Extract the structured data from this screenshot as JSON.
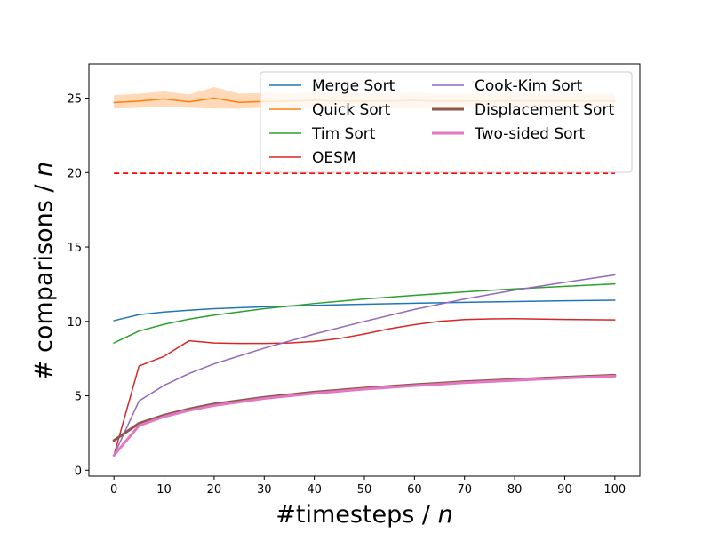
{
  "chart_data": {
    "type": "line",
    "xlabel": "#timesteps / ",
    "xlabel_var": "n",
    "ylabel": "# comparisons / ",
    "ylabel_var": "n",
    "xlim": [
      -5,
      105
    ],
    "ylim": [
      -0.4,
      27.3
    ],
    "xticks": [
      0,
      10,
      20,
      30,
      40,
      50,
      60,
      70,
      80,
      90,
      100
    ],
    "yticks": [
      0,
      5,
      10,
      15,
      20,
      25
    ],
    "grid": false,
    "legend_position": "top-right",
    "legend_columns": 2,
    "reference_line": {
      "y": 19.95,
      "x_range": [
        0,
        100
      ],
      "color": "#ff0000",
      "style": "dashed"
    },
    "series": [
      {
        "name": "Merge Sort",
        "color": "#1f77b4",
        "width": 1.5,
        "x": [
          0,
          5,
          10,
          15,
          20,
          30,
          40,
          50,
          60,
          70,
          80,
          90,
          100
        ],
        "y": [
          10.05,
          10.45,
          10.63,
          10.75,
          10.85,
          10.98,
          11.08,
          11.15,
          11.22,
          11.28,
          11.33,
          11.38,
          11.42
        ]
      },
      {
        "name": "Quick Sort",
        "color": "#ff7f0e",
        "width": 1.5,
        "band": {
          "color": "#ffd9b8",
          "low": [
            24.3,
            24.35,
            24.45,
            24.35,
            24.3,
            24.3,
            24.35,
            24.3,
            24.3,
            24.3,
            24.35,
            24.3,
            24.3,
            24.3,
            24.35,
            24.3,
            24.3,
            24.3,
            24.3,
            24.3,
            24.3
          ],
          "high": [
            25.2,
            25.3,
            25.45,
            25.25,
            25.75,
            25.3,
            25.35,
            25.3,
            25.4,
            25.3,
            25.3,
            25.3,
            25.4,
            25.3,
            25.3,
            25.3,
            25.35,
            25.3,
            25.3,
            25.3,
            25.3
          ]
        },
        "x": [
          0,
          5,
          10,
          15,
          20,
          25,
          30,
          35,
          40,
          45,
          50,
          55,
          60,
          65,
          70,
          75,
          80,
          85,
          90,
          95,
          100
        ],
        "y": [
          24.7,
          24.8,
          24.95,
          24.75,
          25.0,
          24.72,
          24.78,
          24.8,
          24.85,
          24.8,
          24.8,
          24.8,
          24.85,
          24.8,
          24.8,
          24.8,
          24.82,
          24.8,
          24.8,
          24.8,
          24.8
        ]
      },
      {
        "name": "Tim Sort",
        "color": "#2ca02c",
        "width": 1.5,
        "x": [
          0,
          5,
          10,
          15,
          20,
          30,
          40,
          50,
          60,
          70,
          80,
          90,
          100
        ],
        "y": [
          8.55,
          9.35,
          9.8,
          10.15,
          10.42,
          10.85,
          11.2,
          11.5,
          11.75,
          11.98,
          12.18,
          12.35,
          12.52
        ]
      },
      {
        "name": "OESM",
        "color": "#d62728",
        "width": 1.5,
        "x": [
          0,
          5,
          10,
          15,
          20,
          25,
          30,
          35,
          40,
          45,
          50,
          55,
          60,
          65,
          70,
          75,
          80,
          90,
          100
        ],
        "y": [
          1.0,
          7.0,
          7.65,
          8.7,
          8.55,
          8.52,
          8.52,
          8.55,
          8.65,
          8.85,
          9.15,
          9.5,
          9.78,
          10.0,
          10.12,
          10.17,
          10.18,
          10.13,
          10.1
        ]
      },
      {
        "name": "Cook-Kim Sort",
        "color": "#9467bd",
        "width": 1.5,
        "x": [
          0,
          5,
          10,
          15,
          20,
          30,
          40,
          50,
          60,
          70,
          80,
          90,
          100
        ],
        "y": [
          1.0,
          4.65,
          5.7,
          6.5,
          7.15,
          8.2,
          9.15,
          10.0,
          10.8,
          11.5,
          12.1,
          12.62,
          13.12
        ]
      },
      {
        "name": "Displacement Sort",
        "color": "#8c564b",
        "width": 3,
        "x": [
          0,
          5,
          10,
          15,
          20,
          30,
          40,
          50,
          60,
          70,
          80,
          90,
          100
        ],
        "y": [
          2.0,
          3.15,
          3.7,
          4.12,
          4.45,
          4.9,
          5.25,
          5.52,
          5.75,
          5.95,
          6.1,
          6.25,
          6.38
        ]
      },
      {
        "name": "Two-sided Sort",
        "color": "#e377c2",
        "width": 3,
        "x": [
          0,
          5,
          10,
          15,
          20,
          30,
          40,
          50,
          60,
          70,
          80,
          90,
          100
        ],
        "y": [
          1.0,
          3.0,
          3.6,
          4.02,
          4.35,
          4.82,
          5.17,
          5.45,
          5.68,
          5.88,
          6.04,
          6.2,
          6.32
        ]
      }
    ]
  }
}
